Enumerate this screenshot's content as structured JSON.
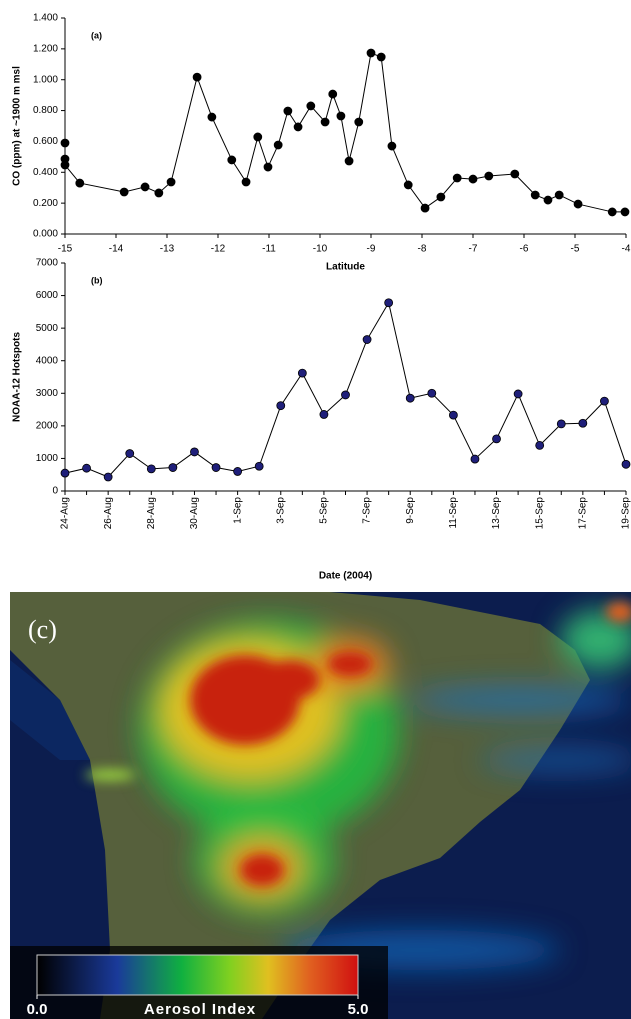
{
  "chart_data": [
    {
      "type": "line",
      "panel_label": "(a)",
      "xlabel": "Latitude",
      "ylabel": "CO (ppm) at ~1900 m msl",
      "color": "#000000",
      "x": [
        -15,
        -15,
        -15,
        -14.71,
        -13.84,
        -13.43,
        -13.16,
        -12.92,
        -12.41,
        -12.12,
        -11.73,
        -11.45,
        -11.22,
        -11.02,
        -10.82,
        -10.63,
        -10.43,
        -10.18,
        -9.9,
        -9.75,
        -9.59,
        -9.43,
        -9.24,
        -9.0,
        -8.8,
        -8.59,
        -8.27,
        -7.94,
        -7.63,
        -7.31,
        -7.0,
        -6.69,
        -6.18,
        -5.78,
        -5.53,
        -5.31,
        -4.94,
        -4.27,
        -4.02
      ],
      "values": [
        0.59,
        0.486,
        0.447,
        0.33,
        0.272,
        0.305,
        0.266,
        0.337,
        1.017,
        0.758,
        0.48,
        0.337,
        0.629,
        0.434,
        0.577,
        0.797,
        0.694,
        0.83,
        0.726,
        0.907,
        0.765,
        0.473,
        0.726,
        1.173,
        1.147,
        0.57,
        0.318,
        0.168,
        0.24,
        0.363,
        0.356,
        0.376,
        0.389,
        0.253,
        0.22,
        0.253,
        0.194,
        0.143,
        0.143
      ],
      "xlim": [
        -15,
        -4
      ],
      "xticks": [
        -15,
        -14,
        -13,
        -12,
        -11,
        -10,
        -9,
        -8,
        -7,
        -6,
        -5,
        -4
      ],
      "ylim": [
        0,
        1.4
      ],
      "yticks": [
        {
          "value": 0,
          "label": "0.000"
        },
        {
          "value": 0.2,
          "label": "0.200"
        },
        {
          "value": 0.4,
          "label": "0.400"
        },
        {
          "value": 0.6,
          "label": "0.600"
        },
        {
          "value": 0.8,
          "label": "0.800"
        },
        {
          "value": 1.0,
          "label": "1.000"
        },
        {
          "value": 1.2,
          "label": "1.200"
        },
        {
          "value": 1.4,
          "label": "1.400"
        }
      ]
    },
    {
      "type": "line",
      "panel_label": "(b)",
      "xlabel": "Date (2004)",
      "ylabel": "NOAA-12 Hotspots",
      "color": "#1f1f7a",
      "categories": [
        "24-Aug",
        null,
        "26-Aug",
        null,
        "28-Aug",
        null,
        "30-Aug",
        null,
        "1-Sep",
        null,
        "3-Sep",
        null,
        "5-Sep",
        null,
        "7-Sep",
        null,
        "9-Sep",
        null,
        "11-Sep",
        null,
        "13-Sep",
        null,
        "15-Sep",
        null,
        "17-Sep",
        null,
        "19-Sep"
      ],
      "values": [
        550,
        700,
        430,
        1150,
        680,
        720,
        1200,
        720,
        600,
        760,
        2620,
        3620,
        2350,
        2950,
        4650,
        5780,
        2850,
        3000,
        2330,
        980,
        1600,
        2980,
        1400,
        2060,
        2080,
        2760,
        820
      ],
      "ylim": [
        0,
        7000
      ],
      "yticks": [
        0,
        1000,
        2000,
        3000,
        4000,
        5000,
        6000,
        7000
      ]
    }
  ],
  "map": {
    "panel_label": "(c)",
    "colorbar_title": "Aerosol Index",
    "colorbar_ticks": [
      {
        "value": 0,
        "label": "0.0"
      },
      {
        "value": 5,
        "label": "5.0"
      }
    ]
  }
}
